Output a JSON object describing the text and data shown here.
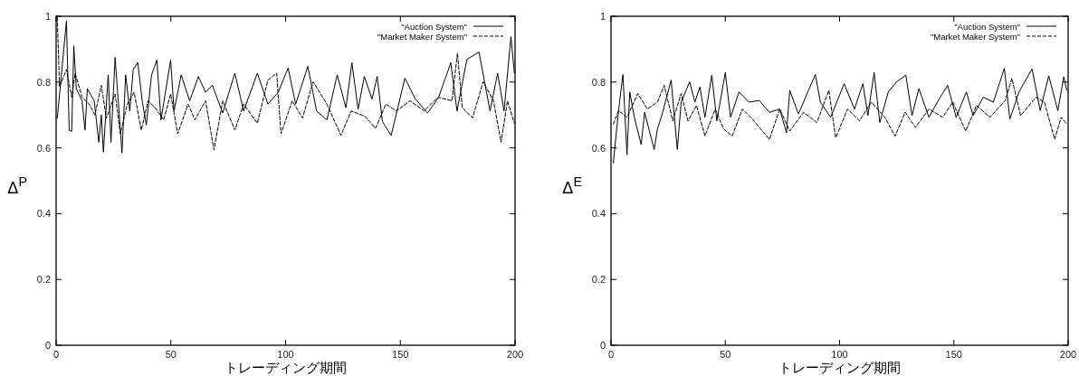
{
  "chart_data": [
    {
      "type": "line",
      "xlabel": "トレーディング期間",
      "ylabel": "Δ$^{P}$",
      "xlim": [
        0,
        200
      ],
      "ylim": [
        0,
        1
      ],
      "xticks": [
        0,
        50,
        100,
        150,
        200
      ],
      "yticks": [
        0,
        0.2,
        0.4,
        0.6,
        0.8,
        1
      ],
      "legend": "top right",
      "series": [
        {
          "name": "\"Auction System\"",
          "color": "#000000",
          "line_style": "solid",
          "x": [
            0.5,
            4.5,
            5.7,
            6.8,
            7.7,
            8.8,
            11.3,
            12.6,
            13.6,
            16.6,
            18.6,
            19.7,
            20.6,
            22.7,
            23.9,
            25.7,
            28.7,
            30.3,
            32.1,
            33.6,
            35.6,
            37.5,
            39.3,
            41.6,
            43.9,
            45.7,
            49.9,
            51.4,
            54.5,
            58.2,
            62,
            65.1,
            68.1,
            72.6,
            77.9,
            81.7,
            87.7,
            92.3,
            96.8,
            101.1,
            104.4,
            109.7,
            113.5,
            118,
            122.5,
            126.3,
            128.9,
            131.6,
            134.3,
            137.7,
            139.9,
            142.2,
            146,
            152,
            156.6,
            161.9,
            166.7,
            172,
            174.7,
            179,
            184.3,
            189.1,
            192.4,
            195.2,
            198.2,
            199.7
          ],
          "values": [
            0.69,
            0.985,
            0.653,
            0.65,
            0.91,
            0.78,
            0.743,
            0.654,
            0.78,
            0.743,
            0.617,
            0.7,
            0.587,
            0.822,
            0.617,
            0.875,
            0.585,
            0.822,
            0.712,
            0.838,
            0.859,
            0.743,
            0.669,
            0.822,
            0.867,
            0.685,
            0.867,
            0.712,
            0.822,
            0.743,
            0.817,
            0.769,
            0.79,
            0.706,
            0.827,
            0.712,
            0.827,
            0.733,
            0.769,
            0.843,
            0.733,
            0.848,
            0.712,
            0.685,
            0.822,
            0.722,
            0.859,
            0.717,
            0.817,
            0.748,
            0.817,
            0.68,
            0.638,
            0.812,
            0.748,
            0.706,
            0.754,
            0.859,
            0.712,
            0.869,
            0.891,
            0.712,
            0.827,
            0.712,
            0.938,
            0.827
          ]
        },
        {
          "name": "\"Market Maker System\"",
          "color": "#000000",
          "line_style": "dashed",
          "x": [
            0.5,
            1.5,
            4.5,
            6.8,
            8.3,
            11.3,
            14.4,
            16.9,
            19.7,
            21.9,
            25.7,
            28,
            31,
            34,
            37.1,
            40.1,
            43.1,
            46.9,
            49.9,
            53,
            57.5,
            60.5,
            65.1,
            68.8,
            72.6,
            77.9,
            81.7,
            87.7,
            92.3,
            96.1,
            98,
            102.9,
            107.4,
            112,
            118,
            124.1,
            128.6,
            134.6,
            139.2,
            143.7,
            148.3,
            154.3,
            160.4,
            166.4,
            172.5,
            174.9,
            177,
            181.5,
            186.1,
            190.6,
            193.9,
            196.7,
            199.7
          ],
          "values": [
            0.996,
            0.785,
            0.838,
            0.754,
            0.827,
            0.754,
            0.733,
            0.7,
            0.79,
            0.69,
            0.764,
            0.643,
            0.733,
            0.769,
            0.654,
            0.743,
            0.722,
            0.685,
            0.764,
            0.643,
            0.733,
            0.685,
            0.743,
            0.594,
            0.743,
            0.654,
            0.733,
            0.675,
            0.806,
            0.827,
            0.643,
            0.743,
            0.691,
            0.801,
            0.733,
            0.638,
            0.712,
            0.696,
            0.659,
            0.733,
            0.712,
            0.743,
            0.712,
            0.754,
            0.743,
            0.888,
            0.722,
            0.691,
            0.801,
            0.743,
            0.617,
            0.743,
            0.675
          ]
        }
      ]
    },
    {
      "type": "line",
      "xlabel": "トレーディング期間",
      "ylabel": "Δ$^{E}$",
      "xlim": [
        0,
        200
      ],
      "ylim": [
        0,
        1
      ],
      "xticks": [
        0,
        50,
        100,
        150,
        200
      ],
      "yticks": [
        0,
        0.2,
        0.4,
        0.6,
        0.8,
        1
      ],
      "legend": "top right",
      "series": [
        {
          "name": "\"Auction System\"",
          "color": "#000000",
          "line_style": "solid",
          "x": [
            1,
            3.3,
            5.2,
            7,
            8.2,
            10.2,
            13.2,
            14.7,
            18.9,
            20.3,
            22.6,
            26.3,
            29,
            30.7,
            34.4,
            36.7,
            38.9,
            41.1,
            44.1,
            46.3,
            50,
            52.3,
            56,
            60.4,
            64.9,
            69.3,
            73.8,
            76.8,
            78.2,
            82,
            86.4,
            89.4,
            91.6,
            96.1,
            102,
            106.5,
            110.2,
            112.4,
            115.1,
            117.6,
            121.3,
            125,
            129,
            131.7,
            134.7,
            139.1,
            143.6,
            147.3,
            151,
            155.5,
            158.4,
            162.9,
            167.3,
            172.1,
            174.5,
            178.5,
            184.2,
            187.8,
            191.5,
            195.5,
            198.1,
            199.4
          ],
          "values": [
            0.554,
            0.713,
            0.823,
            0.579,
            0.77,
            0.693,
            0.61,
            0.708,
            0.595,
            0.657,
            0.708,
            0.806,
            0.595,
            0.739,
            0.801,
            0.739,
            0.785,
            0.693,
            0.821,
            0.682,
            0.829,
            0.693,
            0.77,
            0.739,
            0.744,
            0.708,
            0.718,
            0.646,
            0.775,
            0.703,
            0.775,
            0.823,
            0.739,
            0.693,
            0.795,
            0.718,
            0.795,
            0.698,
            0.829,
            0.677,
            0.77,
            0.801,
            0.821,
            0.698,
            0.78,
            0.693,
            0.749,
            0.79,
            0.693,
            0.77,
            0.698,
            0.754,
            0.739,
            0.842,
            0.687,
            0.77,
            0.84,
            0.713,
            0.819,
            0.713,
            0.816,
            0.775
          ]
        },
        {
          "name": "\"Market Maker System\"",
          "color": "#000000",
          "line_style": "dashed",
          "x": [
            1,
            3.3,
            7,
            11.7,
            15.9,
            20.3,
            23.3,
            27,
            30.7,
            33.7,
            37.4,
            41.1,
            45.6,
            49.3,
            53,
            57.5,
            61.9,
            69.3,
            73.8,
            78.2,
            84.2,
            90.1,
            95.3,
            98.3,
            103.5,
            108.7,
            113.9,
            119.8,
            124.3,
            128.7,
            133.2,
            139.1,
            145.1,
            149.5,
            155.2,
            159.9,
            165.8,
            172.5,
            175.4,
            179.2,
            185.9,
            189.6,
            194.1,
            197,
            199.4
          ],
          "values": [
            0.672,
            0.713,
            0.693,
            0.765,
            0.718,
            0.739,
            0.79,
            0.682,
            0.765,
            0.682,
            0.729,
            0.636,
            0.718,
            0.657,
            0.636,
            0.718,
            0.687,
            0.626,
            0.718,
            0.651,
            0.708,
            0.677,
            0.775,
            0.631,
            0.718,
            0.682,
            0.739,
            0.693,
            0.636,
            0.708,
            0.662,
            0.718,
            0.693,
            0.739,
            0.651,
            0.729,
            0.693,
            0.744,
            0.811,
            0.698,
            0.754,
            0.739,
            0.626,
            0.693,
            0.672
          ]
        }
      ]
    }
  ]
}
